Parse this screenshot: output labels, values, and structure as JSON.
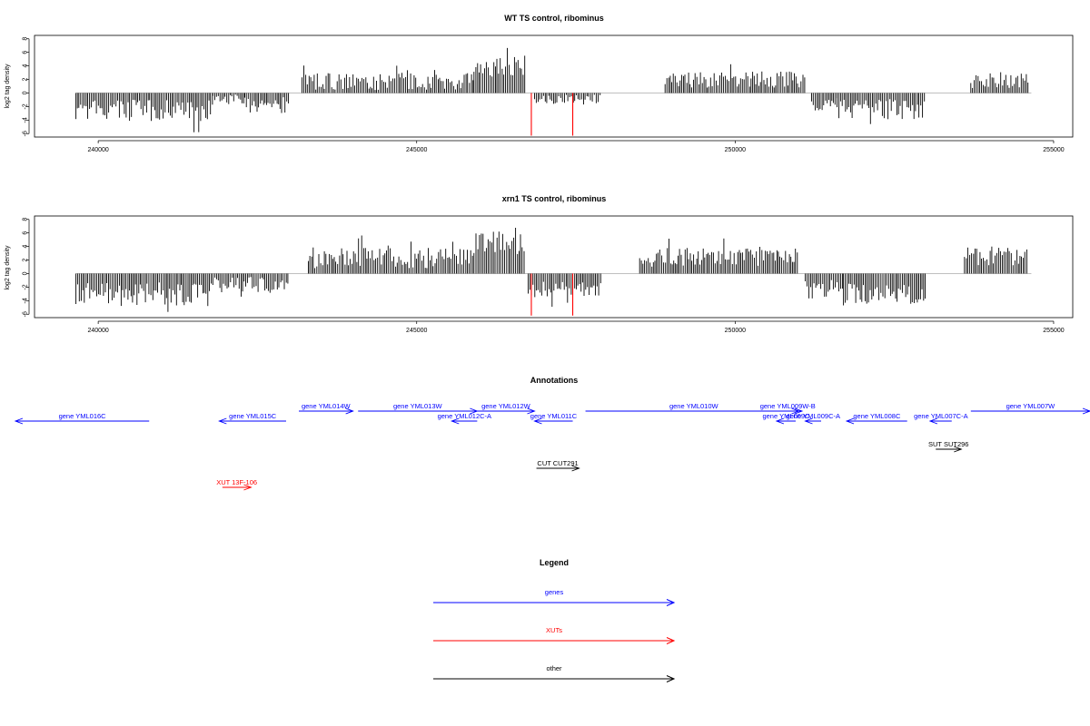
{
  "chart_data": [
    {
      "type": "bar",
      "title": "WT TS control, ribominus",
      "xlabel": "",
      "ylabel": "log2 tag density",
      "xlim": [
        239000,
        255300
      ],
      "ylim": [
        -6.5,
        8.5
      ],
      "xticks": [
        240000,
        245000,
        250000,
        255000
      ],
      "yticks": [
        -6,
        -4,
        -2,
        0,
        2,
        4,
        6,
        8
      ],
      "regions": [
        {
          "start": 239650,
          "end": 241800,
          "sign": -1,
          "base": 2.6,
          "var": 1.6
        },
        {
          "start": 241800,
          "end": 242300,
          "sign": -1,
          "base": 0.8,
          "var": 0.8
        },
        {
          "start": 242300,
          "end": 243000,
          "sign": -1,
          "base": 1.8,
          "var": 1.2
        },
        {
          "start": 243200,
          "end": 245900,
          "sign": 1,
          "base": 1.7,
          "var": 1.3
        },
        {
          "start": 245900,
          "end": 246700,
          "sign": 1,
          "base": 4.0,
          "var": 1.6
        },
        {
          "start": 246850,
          "end": 247200,
          "sign": -1,
          "base": 1.0,
          "var": 0.6
        },
        {
          "start": 247200,
          "end": 247900,
          "sign": -1,
          "base": 0.9,
          "var": 0.7
        },
        {
          "start": 248900,
          "end": 251100,
          "sign": 1,
          "base": 2.0,
          "var": 1.2
        },
        {
          "start": 251200,
          "end": 251600,
          "sign": -1,
          "base": 1.6,
          "var": 1.0
        },
        {
          "start": 251600,
          "end": 253000,
          "sign": -1,
          "base": 2.4,
          "var": 1.5
        },
        {
          "start": 253700,
          "end": 254600,
          "sign": 1,
          "base": 1.8,
          "var": 1.1
        }
      ],
      "red_marks": [
        {
          "x": 246800,
          "y": -6.3
        },
        {
          "x": 247450,
          "y": -6.3
        }
      ]
    },
    {
      "type": "bar",
      "title": "xrn1 TS control, ribominus",
      "xlabel": "",
      "ylabel": "log2 tag density",
      "xlim": [
        239000,
        255300
      ],
      "ylim": [
        -6.5,
        8.5
      ],
      "xticks": [
        240000,
        245000,
        250000,
        255000
      ],
      "yticks": [
        -6,
        -4,
        -2,
        0,
        2,
        4,
        6,
        8
      ],
      "regions": [
        {
          "start": 239650,
          "end": 241800,
          "sign": -1,
          "base": 3.0,
          "var": 1.8
        },
        {
          "start": 241800,
          "end": 243000,
          "sign": -1,
          "base": 1.7,
          "var": 1.2
        },
        {
          "start": 243300,
          "end": 245900,
          "sign": 1,
          "base": 2.3,
          "var": 1.5
        },
        {
          "start": 245900,
          "end": 246700,
          "sign": 1,
          "base": 4.8,
          "var": 2.0
        },
        {
          "start": 246750,
          "end": 247900,
          "sign": -1,
          "base": 2.4,
          "var": 1.2
        },
        {
          "start": 248500,
          "end": 251000,
          "sign": 1,
          "base": 2.4,
          "var": 1.4
        },
        {
          "start": 251100,
          "end": 251700,
          "sign": -1,
          "base": 2.3,
          "var": 1.4
        },
        {
          "start": 251700,
          "end": 253000,
          "sign": -1,
          "base": 2.9,
          "var": 1.6
        },
        {
          "start": 253600,
          "end": 254600,
          "sign": 1,
          "base": 2.6,
          "var": 1.4
        }
      ],
      "red_marks": [
        {
          "x": 246800,
          "y": -6.2
        },
        {
          "x": 247450,
          "y": -6.2
        }
      ]
    }
  ],
  "annotations": {
    "title": "Annotations",
    "features": [
      {
        "label": "gene YML016C",
        "start": 238700,
        "end": 240800,
        "strand": "-",
        "row": 2,
        "type": "gene"
      },
      {
        "label": "gene YML015C",
        "start": 241900,
        "end": 242950,
        "strand": "-",
        "row": 2,
        "type": "gene"
      },
      {
        "label": "gene YML014W",
        "start": 243150,
        "end": 244000,
        "strand": "+",
        "row": 1,
        "type": "gene"
      },
      {
        "label": "gene YML013W",
        "start": 244080,
        "end": 245950,
        "strand": "+",
        "row": 1,
        "type": "gene"
      },
      {
        "label": "gene YML012C-A",
        "start": 245550,
        "end": 245950,
        "strand": "-",
        "row": 2,
        "type": "gene"
      },
      {
        "label": "gene YML012W",
        "start": 245950,
        "end": 246850,
        "strand": "+",
        "row": 1,
        "type": "gene"
      },
      {
        "label": "gene YML011C",
        "start": 246850,
        "end": 247450,
        "strand": "-",
        "row": 2,
        "type": "gene"
      },
      {
        "label": "gene YML010W",
        "start": 247650,
        "end": 251050,
        "strand": "+",
        "row": 1,
        "type": "gene"
      },
      {
        "label": "gene YML009W-B",
        "start": 250650,
        "end": 251000,
        "strand": "+",
        "row": 1,
        "type": "gene"
      },
      {
        "label": "gene YML009C",
        "start": 250650,
        "end": 250950,
        "strand": "-",
        "row": 2,
        "type": "gene"
      },
      {
        "label": "gene YML009C-A",
        "start": 251100,
        "end": 251350,
        "strand": "-",
        "row": 2,
        "type": "gene"
      },
      {
        "label": "gene YML008C",
        "start": 251750,
        "end": 252700,
        "strand": "-",
        "row": 2,
        "type": "gene"
      },
      {
        "label": "gene YML007C-A",
        "start": 253060,
        "end": 253400,
        "strand": "-",
        "row": 2,
        "type": "gene"
      },
      {
        "label": "gene YML007W",
        "start": 253700,
        "end": 256000,
        "strand": "+",
        "row": 1,
        "type": "gene"
      },
      {
        "label": "SUT SUT296",
        "start": 253150,
        "end": 253550,
        "strand": "+",
        "row": 3,
        "type": "other"
      },
      {
        "label": "CUT CUT291",
        "start": 246880,
        "end": 247550,
        "strand": "+",
        "row": 4,
        "type": "other"
      },
      {
        "label": "XUT 13F-106",
        "start": 241950,
        "end": 242400,
        "strand": "+",
        "row": 5,
        "type": "xut"
      }
    ]
  },
  "legend": {
    "title": "Legend",
    "items": [
      {
        "label": "genes",
        "color": "#0000ff"
      },
      {
        "label": "XUTs",
        "color": "#ff0000"
      },
      {
        "label": "other",
        "color": "#000000"
      }
    ]
  },
  "colors": {
    "gene": "#0000ff",
    "xut": "#ff0000",
    "other": "#000000",
    "bars": "#000000",
    "axis": "#000000",
    "zero": "#999999"
  }
}
